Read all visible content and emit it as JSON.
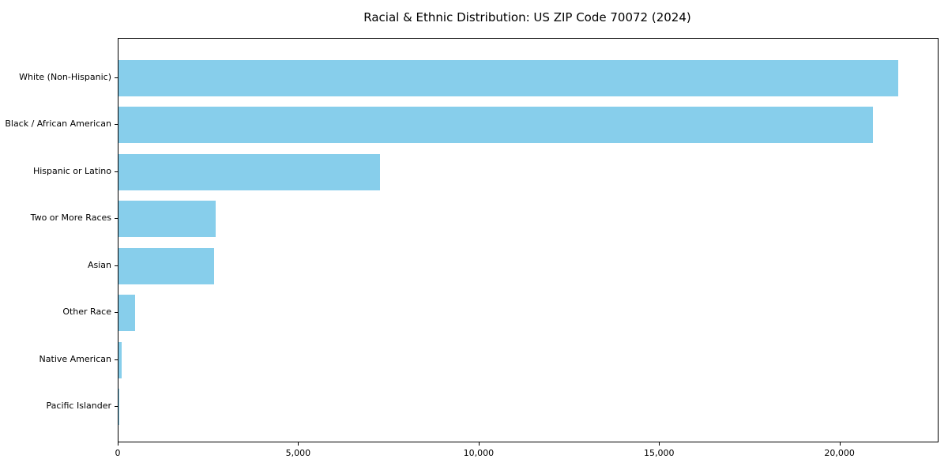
{
  "chart_data": {
    "type": "bar",
    "orientation": "horizontal",
    "title": "Racial & Ethnic Distribution: US ZIP Code 70072 (2024)",
    "categories": [
      "White (Non-Hispanic)",
      "Black / African American",
      "Hispanic or Latino",
      "Two or More Races",
      "Asian",
      "Other Race",
      "Native American",
      "Pacific Islander"
    ],
    "values": [
      21600,
      20900,
      7250,
      2700,
      2650,
      450,
      90,
      20
    ],
    "xlabel": "",
    "ylabel": "",
    "xlim": [
      0,
      22700
    ],
    "x_ticks": [
      0,
      5000,
      10000,
      15000,
      20000
    ],
    "x_tick_labels": [
      "0",
      "5,000",
      "10,000",
      "15,000",
      "20,000"
    ],
    "bar_color": "#87CEEB",
    "frame_color": "#000000",
    "background_color": "#ffffff",
    "grid": false,
    "legend": null
  }
}
